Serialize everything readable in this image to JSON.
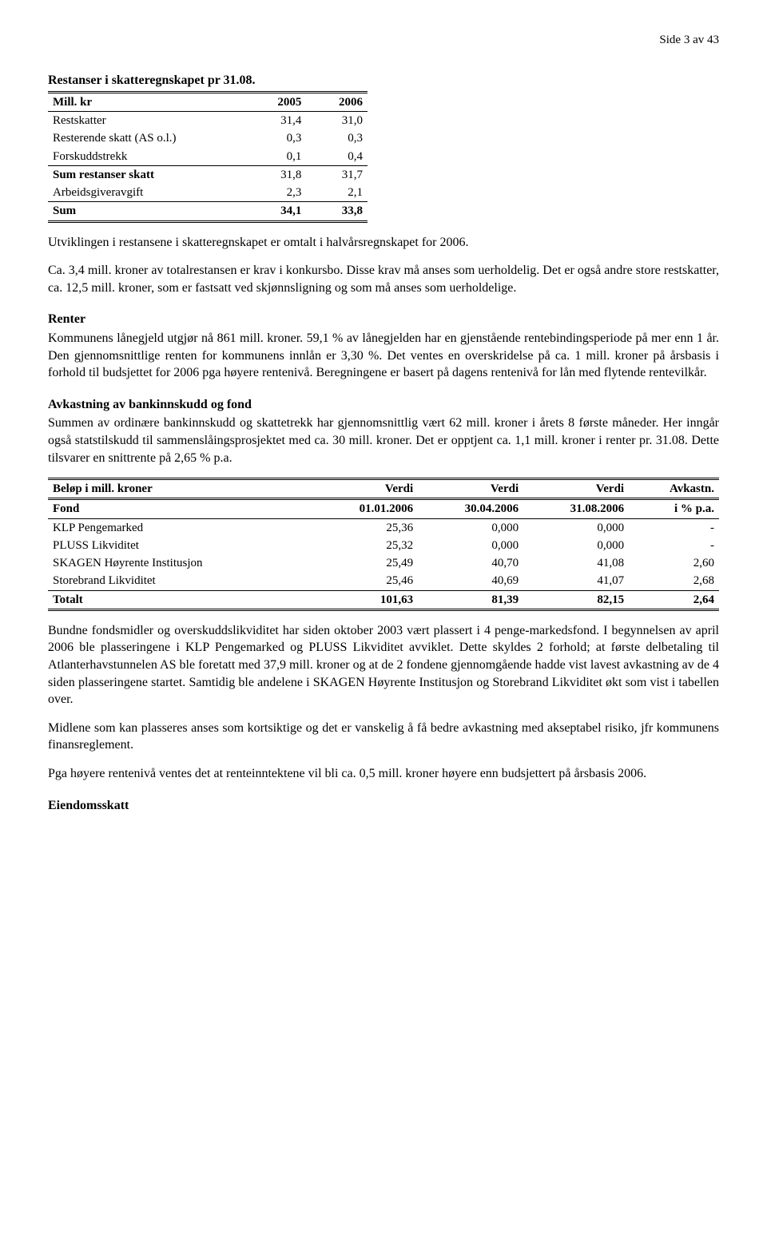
{
  "page_header": "Side 3 av 43",
  "heading1": "Restanser i skatteregnskapet pr 31.08.",
  "table1": {
    "header": {
      "label": "Mill. kr",
      "col1": "2005",
      "col2": "2006"
    },
    "rows": [
      {
        "label": "Restskatter",
        "c1": "31,4",
        "c2": "31,0"
      },
      {
        "label": "Resterende skatt (AS o.l.)",
        "c1": "0,3",
        "c2": "0,3"
      },
      {
        "label": "Forskuddstrekk",
        "c1": "0,1",
        "c2": "0,4"
      }
    ],
    "sum1": {
      "label": "Sum restanser skatt",
      "c1": "31,8",
      "c2": "31,7"
    },
    "mid": {
      "label": "Arbeidsgiveravgift",
      "c1": "2,3",
      "c2": "2,1"
    },
    "total": {
      "label": "Sum",
      "c1": "34,1",
      "c2": "33,8"
    }
  },
  "para1": "Utviklingen i restansene i skatteregnskapet er omtalt i halvårsregnskapet for 2006.",
  "para2": "Ca. 3,4 mill. kroner av totalrestansen er krav i konkursbo. Disse krav må anses som uerholdelig. Det er også andre store restskatter, ca. 12,5 mill. kroner, som er fastsatt ved skjønnsligning og som må anses som uerholdelige.",
  "heading2": "Renter",
  "para3": "Kommunens lånegjeld utgjør nå 861 mill. kroner. 59,1 % av lånegjelden har en gjenstående rentebindingsperiode på mer enn 1 år. Den gjennomsnittlige renten for kommunens innlån er 3,30 %. Det ventes en overskridelse på ca. 1 mill. kroner på årsbasis i forhold til budsjettet for 2006 pga høyere rentenivå. Beregningene er basert på dagens rentenivå for lån med flytende rentevilkår.",
  "heading3": "Avkastning av bankinnskudd og fond",
  "para4": "Summen av ordinære bankinnskudd og skattetrekk har gjennomsnittlig vært 62 mill. kroner i årets 8 første måneder. Her inngår også statstilskudd til sammenslåingsprosjektet med ca. 30 mill. kroner. Det er opptjent ca. 1,1 mill. kroner i renter pr. 31.08. Dette tilsvarer en snittrente på 2,65 % p.a.",
  "table2": {
    "h1": {
      "c0": "Beløp i mill. kroner",
      "c1": "Verdi",
      "c2": "Verdi",
      "c3": "Verdi",
      "c4": "Avkastn."
    },
    "h2": {
      "c0": "Fond",
      "c1": "01.01.2006",
      "c2": "30.04.2006",
      "c3": "31.08.2006",
      "c4": "i % p.a."
    },
    "rows": [
      {
        "c0": "KLP Pengemarked",
        "c1": "25,36",
        "c2": "0,000",
        "c3": "0,000",
        "c4": "-"
      },
      {
        "c0": "PLUSS Likviditet",
        "c1": "25,32",
        "c2": "0,000",
        "c3": "0,000",
        "c4": "-"
      },
      {
        "c0": "SKAGEN Høyrente Institusjon",
        "c1": "25,49",
        "c2": "40,70",
        "c3": "41,08",
        "c4": "2,60"
      },
      {
        "c0": "Storebrand Likviditet",
        "c1": "25,46",
        "c2": "40,69",
        "c3": "41,07",
        "c4": "2,68"
      }
    ],
    "total": {
      "c0": "Totalt",
      "c1": "101,63",
      "c2": "81,39",
      "c3": "82,15",
      "c4": "2,64"
    }
  },
  "para5": "Bundne fondsmidler og overskuddslikviditet har siden oktober 2003 vært plassert i 4 penge-markedsfond. I begynnelsen av april 2006 ble plasseringene i KLP Pengemarked og PLUSS Likviditet avviklet. Dette skyldes 2 forhold; at første delbetaling til Atlanterhavstunnelen AS ble foretatt med 37,9 mill. kroner og at de 2 fondene gjennomgående hadde vist lavest avkastning av de 4 siden plasseringene startet. Samtidig ble andelene i SKAGEN Høyrente Institusjon og Storebrand Likviditet økt som vist i tabellen over.",
  "para6": "Midlene som kan plasseres anses som kortsiktige og det er vanskelig å få bedre avkastning med akseptabel risiko, jfr kommunens finansreglement.",
  "para7": "Pga høyere rentenivå ventes det at renteinntektene vil bli ca. 0,5 mill. kroner høyere enn budsjettert på årsbasis 2006.",
  "heading4": "Eiendomsskatt"
}
